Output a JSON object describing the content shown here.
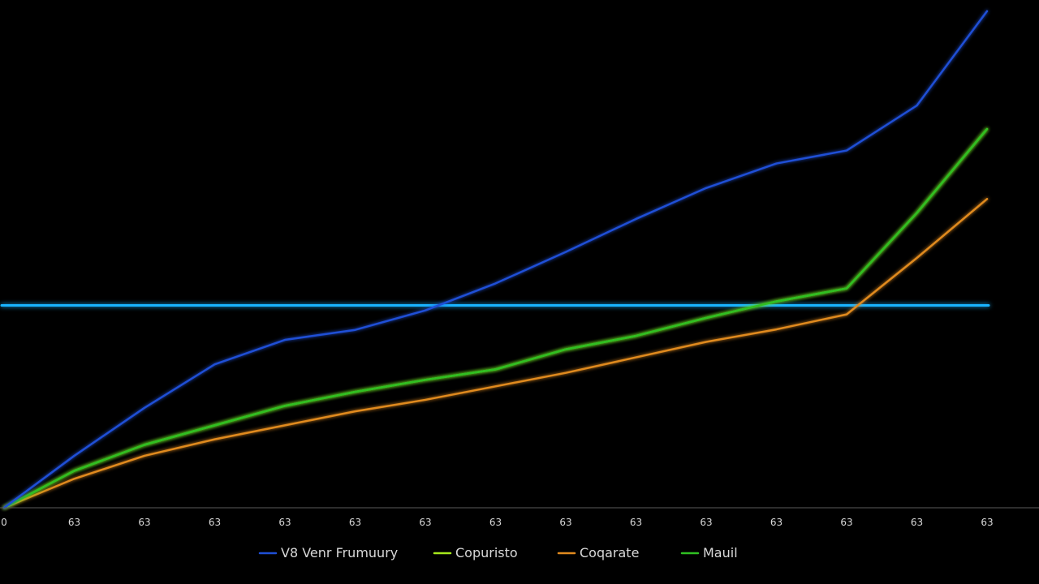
{
  "chart_data": {
    "type": "line",
    "x": [
      0,
      1,
      2,
      3,
      4,
      5,
      6,
      7,
      8,
      9,
      10,
      11,
      12,
      13,
      14
    ],
    "tick_labels": [
      "0",
      "63",
      "63",
      "63",
      "63",
      "63",
      "63",
      "63",
      "63",
      "63",
      "63",
      "63",
      "63",
      "63",
      "63"
    ],
    "ylim": [
      0,
      100
    ],
    "grid": false,
    "legend": "bottom",
    "series": [
      {
        "name": "V8 Venr Frumuury",
        "color": "#1f4fd6",
        "values": [
          0,
          10.4,
          20,
          28.7,
          33.6,
          35.6,
          39.5,
          44.9,
          51.2,
          57.8,
          64,
          68.9,
          71.5,
          80.5,
          99.4
        ]
      },
      {
        "name": "Copuristo",
        "color": "#a5e81c",
        "values": [
          0,
          7.4,
          12.6,
          16.5,
          20.4,
          23.2,
          25.6,
          27.7,
          31.7,
          34.4,
          38,
          41.3,
          43.9,
          59,
          75.8
        ]
      },
      {
        "name": "Coqarate",
        "color": "#e08a1e",
        "values": [
          0,
          5.8,
          10.4,
          13.7,
          16.5,
          19.3,
          21.6,
          24.3,
          27,
          30.1,
          33.2,
          35.7,
          38.7,
          50,
          61.8
        ]
      },
      {
        "name": "Mauil",
        "color": "#2fbf22",
        "values": [
          0,
          7.4,
          12.6,
          16.5,
          20.4,
          23.2,
          25.6,
          27.7,
          31.7,
          34.4,
          38,
          41.3,
          43.9,
          59,
          75.8
        ]
      }
    ],
    "reference_line": {
      "value": 40.5,
      "color": "#19b3ff"
    }
  }
}
